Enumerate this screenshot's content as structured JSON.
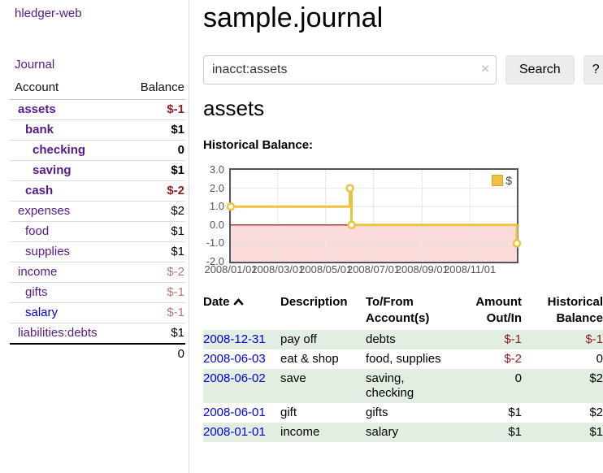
{
  "app": {
    "brand": "hledger-web"
  },
  "sidebar": {
    "journal_link": "Journal",
    "accounts": {
      "headers": [
        "Account",
        "Balance"
      ],
      "rows": [
        {
          "label": "assets",
          "level": 1,
          "bold": true,
          "link_color": "purple",
          "balance": "$-1",
          "balance_style": "neg-strong"
        },
        {
          "label": "bank",
          "level": 2,
          "bold": true,
          "link_color": "purple",
          "balance": "$1",
          "balance_style": "pos"
        },
        {
          "label": "checking",
          "level": 3,
          "bold": true,
          "link_color": "purple",
          "balance": "0",
          "balance_style": "pos"
        },
        {
          "label": "saving",
          "level": 3,
          "bold": true,
          "link_color": "purple",
          "balance": "$1",
          "balance_style": "pos"
        },
        {
          "label": "cash",
          "level": 2,
          "bold": true,
          "link_color": "purple",
          "balance": "$-2",
          "balance_style": "neg-strong"
        },
        {
          "label": "expenses",
          "level": 1,
          "bold": false,
          "link_color": "purple",
          "balance": "$2",
          "balance_style": "pos"
        },
        {
          "label": "food",
          "level": 2,
          "bold": false,
          "link_color": "purple",
          "balance": "$1",
          "balance_style": "pos"
        },
        {
          "label": "supplies",
          "level": 2,
          "bold": false,
          "link_color": "purple",
          "balance": "$1",
          "balance_style": "pos"
        },
        {
          "label": "income",
          "level": 1,
          "bold": false,
          "link_color": "purple",
          "balance": "$-2",
          "balance_style": "neg-soft"
        },
        {
          "label": "gifts",
          "level": 2,
          "bold": false,
          "link_color": "purple",
          "balance": "$-1",
          "balance_style": "neg-soft"
        },
        {
          "label": "salary",
          "level": 2,
          "bold": false,
          "link_color": "blue",
          "balance": "$-1",
          "balance_style": "neg-soft"
        },
        {
          "label": "liabilities:debts",
          "level": 1,
          "bold": false,
          "link_color": "purple",
          "balance": "$1",
          "balance_style": "pos"
        }
      ],
      "total": "0"
    }
  },
  "main": {
    "title": "sample.journal",
    "search": {
      "value": "inacct:assets",
      "clear_icon": "×",
      "button_label": "Search",
      "help_label": "?"
    },
    "account_heading": "assets",
    "chart_label": "Historical Balance:",
    "register": {
      "headers": [
        "Date",
        "Description",
        "To/From Account(s)",
        "Amount Out/In",
        "Historical Balance"
      ],
      "rows": [
        {
          "date": "2008-12-31",
          "description": "pay off",
          "accounts": "debts",
          "amount": "$-1",
          "amount_neg": true,
          "balance": "$-1",
          "balance_neg": true
        },
        {
          "date": "2008-06-03",
          "description": "eat & shop",
          "accounts": "food, supplies",
          "amount": "$-2",
          "amount_neg": true,
          "balance": "0",
          "balance_neg": false
        },
        {
          "date": "2008-06-02",
          "description": "save",
          "accounts": "saving,\nchecking",
          "amount": "0",
          "amount_neg": false,
          "balance": "$2",
          "balance_neg": false
        },
        {
          "date": "2008-06-01",
          "description": "gift",
          "accounts": "gifts",
          "amount": "$1",
          "amount_neg": false,
          "balance": "$2",
          "balance_neg": false
        },
        {
          "date": "2008-01-01",
          "description": "income",
          "accounts": "salary",
          "amount": "$1",
          "amount_neg": false,
          "balance": "$1",
          "balance_neg": false
        }
      ]
    }
  },
  "chart_data": {
    "type": "line",
    "step": true,
    "title": "Historical Balance:",
    "series": [
      {
        "name": "$",
        "color": "#EDC240",
        "points": [
          [
            "2008-01-01",
            1
          ],
          [
            "2008-06-01",
            2
          ],
          [
            "2008-06-03",
            0
          ],
          [
            "2008-12-31",
            -1
          ]
        ]
      }
    ],
    "x_range": [
      "2008-01-01",
      "2008-12-31"
    ],
    "x_ticks": [
      "2008/01/01",
      "2008/03/01",
      "2008/05/01",
      "2008/07/01",
      "2008/09/01",
      "2008/11/01"
    ],
    "y_ticks": [
      3.0,
      2.0,
      1.0,
      0.0,
      -1.0,
      -2.0
    ],
    "ylim": [
      -2,
      3
    ],
    "grid": true,
    "legend_position": "top-right",
    "negative_region_color": "#fbdada",
    "zero_line_color": "#8b0000",
    "grid_color": "#e6e6e6"
  },
  "colors": {
    "link_purple": "#551a8b",
    "link_blue": "#0000e0",
    "negative_strong": "#8f1d1d",
    "negative_soft": "#b87676",
    "row_green": "#e2eee2",
    "chart_line": "#EDC240"
  }
}
